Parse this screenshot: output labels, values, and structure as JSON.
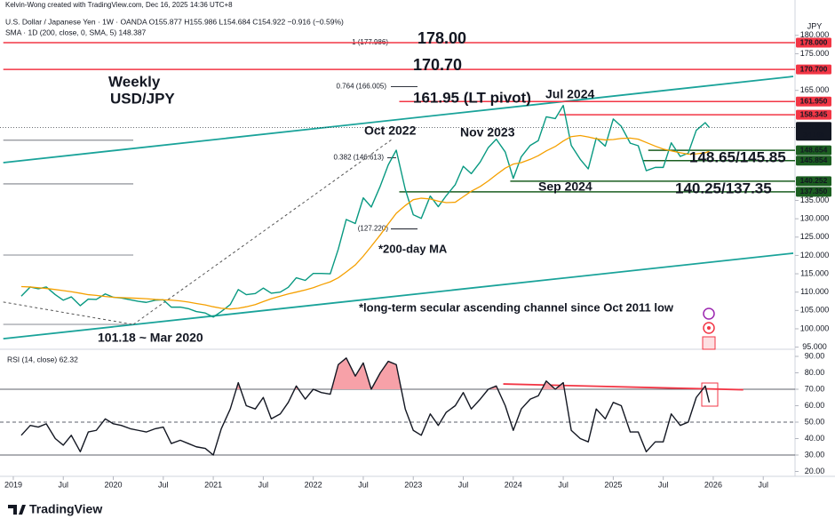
{
  "chart_data": [
    {
      "type": "line",
      "header": [
        "Kelvin-Wong created with TradingView.com, Dec 16, 2025 14:36 UTC+8",
        "U.S. Dollar / Japanese Yen · 1W · OANDA  O155.877 H155.986 L154.684 C154.922 −0.916 (−0.59%)",
        "SMA · 1D (200, close, 0, SMA, 5) 148.387"
      ],
      "y_axis_title": "JPY",
      "xlim": [
        2018.9,
        2026.8
      ],
      "ylim": [
        95,
        180
      ],
      "yticks": [
        {
          "value": 95,
          "label": "95.000"
        },
        {
          "value": 100,
          "label": "100.000"
        },
        {
          "value": 105,
          "label": "105.000"
        },
        {
          "value": 110,
          "label": "110.000"
        },
        {
          "value": 115,
          "label": "115.000"
        },
        {
          "value": 120,
          "label": "120.000"
        },
        {
          "value": 125,
          "label": "125.000"
        },
        {
          "value": 130,
          "label": "130.000"
        },
        {
          "value": 135,
          "label": "135.000"
        },
        {
          "value": 165,
          "label": "165.000"
        },
        {
          "value": 175,
          "label": "175.000"
        },
        {
          "value": 180,
          "label": "180.000"
        }
      ],
      "x": [
        2019.08,
        2019.17,
        2019.25,
        2019.33,
        2019.42,
        2019.5,
        2019.58,
        2019.67,
        2019.75,
        2019.83,
        2019.92,
        2020,
        2020.08,
        2020.17,
        2020.25,
        2020.33,
        2020.42,
        2020.5,
        2020.58,
        2020.67,
        2020.75,
        2020.83,
        2020.92,
        2021,
        2021.08,
        2021.17,
        2021.25,
        2021.33,
        2021.42,
        2021.5,
        2021.58,
        2021.67,
        2021.75,
        2021.83,
        2021.92,
        2022,
        2022.08,
        2022.17,
        2022.25,
        2022.33,
        2022.42,
        2022.5,
        2022.58,
        2022.67,
        2022.75,
        2022.83,
        2022.92,
        2023,
        2023.08,
        2023.17,
        2023.25,
        2023.33,
        2023.42,
        2023.5,
        2023.58,
        2023.67,
        2023.75,
        2023.83,
        2023.92,
        2024,
        2024.08,
        2024.17,
        2024.25,
        2024.33,
        2024.42,
        2024.5,
        2024.58,
        2024.67,
        2024.75,
        2024.83,
        2024.92,
        2025,
        2025.08,
        2025.17,
        2025.25,
        2025.33,
        2025.42,
        2025.5,
        2025.58,
        2025.67,
        2025.75,
        2025.83,
        2025.92,
        2025.96
      ],
      "series": [
        {
          "color": "#089981",
          "values": [
            108.9,
            111.4,
            110.9,
            111.4,
            109.3,
            107.8,
            108.7,
            106.3,
            108.1,
            108.0,
            109.5,
            108.6,
            108.4,
            107.9,
            107.5,
            107.2,
            107.8,
            107.9,
            105.9,
            105.9,
            105.5,
            104.7,
            104.3,
            103.2,
            104.7,
            106.6,
            110.7,
            109.3,
            109.6,
            111.1,
            109.7,
            110.0,
            111.3,
            113.9,
            113.2,
            115.1,
            115.1,
            115.0,
            121.7,
            129.8,
            128.7,
            135.7,
            133.2,
            138.9,
            144.7,
            148.7,
            138.0,
            131.1,
            130.1,
            136.2,
            133.3,
            136.3,
            139.3,
            144.3,
            142.3,
            145.5,
            149.4,
            151.7,
            148.2,
            141.0,
            146.9,
            150.0,
            151.3,
            157.8,
            157.3,
            160.9,
            150.0,
            146.2,
            143.6,
            152.0,
            149.8,
            157.2,
            155.2,
            150.6,
            149.9,
            143.1,
            144.0,
            144.0,
            150.7,
            147.0,
            147.9,
            154.1,
            156.2,
            154.9
          ]
        },
        {
          "color": "#f5a000",
          "values": [
            111.5,
            111.4,
            111.2,
            111.0,
            110.7,
            110.4,
            110.1,
            109.7,
            109.3,
            109.1,
            108.8,
            108.6,
            108.5,
            108.4,
            108.3,
            108.2,
            108.0,
            107.9,
            107.8,
            107.6,
            107.3,
            106.9,
            106.5,
            106.0,
            105.6,
            105.4,
            105.6,
            106.0,
            106.6,
            107.4,
            108.2,
            108.9,
            109.5,
            110.0,
            110.6,
            111.2,
            112.0,
            112.8,
            113.9,
            115.5,
            117.4,
            119.8,
            122.5,
            125.6,
            128.6,
            131.5,
            133.6,
            135.2,
            135.6,
            135.4,
            134.8,
            134.4,
            134.5,
            136.0,
            137.5,
            138.8,
            140.3,
            142.0,
            143.8,
            144.9,
            145.3,
            146.2,
            147.2,
            148.5,
            149.7,
            151.2,
            152.4,
            152.7,
            152.3,
            151.8,
            151.5,
            151.6,
            151.9,
            152.0,
            151.7,
            150.8,
            149.8,
            149.0,
            148.5,
            148.0,
            147.6,
            147.7,
            148.0,
            148.4
          ]
        }
      ],
      "levels": [
        {
          "value": 178,
          "label": "178.000",
          "color": "#f23645",
          "from": 2018.9
        },
        {
          "value": 170.7,
          "label": "170.700",
          "color": "#f23645",
          "from": 2018.9
        },
        {
          "value": 161.95,
          "label": "161.950",
          "color": "#f23645",
          "from": 2022.86
        },
        {
          "value": 158.345,
          "label": "158.345",
          "color": "#f23645",
          "from": 2024.46
        },
        {
          "value": 148.654,
          "label": "148.654",
          "color": "#1b5e20",
          "from": 2025.35
        },
        {
          "value": 145.854,
          "label": "145.854",
          "color": "#1b5e20",
          "from": 2025.3
        },
        {
          "value": 140.252,
          "label": "140.252",
          "color": "#1b5e20",
          "from": 2023.97
        },
        {
          "value": 137.35,
          "label": "137.350",
          "color": "#1b5e20",
          "from": 2022.86
        }
      ],
      "last": {
        "value": 154.922,
        "label": "154.922",
        "countdown": "3d 16h"
      },
      "fib": [
        {
          "value": 177.986,
          "label": "1 (177.986)"
        },
        {
          "value": 166.005,
          "label": "0.764 (166.005)"
        },
        {
          "value": 146.613,
          "label": "0.382 (146.613)"
        },
        {
          "value": 127.22,
          "label": "(127.220)"
        }
      ],
      "ref_lines": [
        151.4,
        139.5,
        120.1,
        101.2
      ],
      "trendlines": [
        {
          "x": [
            2018.9,
            2026.8
          ],
          "y": [
            145.3,
            168.8
          ],
          "color": "#1aa39a",
          "dash": false
        },
        {
          "x": [
            2018.9,
            2026.8
          ],
          "y": [
            97.3,
            120.6
          ],
          "color": "#1aa39a",
          "dash": false
        },
        {
          "x": [
            2020.2,
            2022.8
          ],
          "y": [
            101.18,
            151.9
          ],
          "color": "#555555",
          "dash": true
        },
        {
          "x": [
            2018.9,
            2020.2
          ],
          "y": [
            107.3,
            101.18
          ],
          "color": "#555555",
          "dash": true
        }
      ],
      "annotations": [
        "Weekly",
        "USD/JPY",
        "Oct 2022",
        "Nov 2023",
        "Jul 2024",
        "Sep 2024",
        "148.65/145.85",
        "140.25/137.35",
        "*200-day MA",
        "*long-term secular ascending channel since Oct 2011 low",
        "101.18 ~ Mar 2020",
        "178.00",
        "170.70",
        "161.95 (LT pivot)"
      ]
    },
    {
      "type": "line",
      "title": "RSI (14, close) 62.32",
      "xlim": [
        2018.9,
        2026.8
      ],
      "ylim": [
        17,
        93
      ],
      "yticks": [
        {
          "value": 20,
          "label": "20.00"
        },
        {
          "value": 30,
          "label": "30.00"
        },
        {
          "value": 40,
          "label": "40.00"
        },
        {
          "value": 50,
          "label": "50.00"
        },
        {
          "value": 60,
          "label": "60.00"
        },
        {
          "value": 70,
          "label": "70.00"
        },
        {
          "value": 80,
          "label": "80.00"
        },
        {
          "value": 90,
          "label": "90.00"
        }
      ],
      "xticks": [
        2019,
        {
          "value": 2019.5,
          "label": "Jul"
        },
        2020,
        {
          "value": 2020.5,
          "label": "Jul"
        },
        2021,
        {
          "value": 2021.5,
          "label": "Jul"
        },
        2022,
        {
          "value": 2022.5,
          "label": "Jul"
        },
        2023,
        {
          "value": 2023.5,
          "label": "Jul"
        },
        2024,
        {
          "value": 2024.5,
          "label": "Jul"
        },
        2025,
        {
          "value": 2025.5,
          "label": "Jul"
        },
        2026,
        {
          "value": 2026.5,
          "label": "Jul"
        }
      ],
      "x": [
        2019.08,
        2019.17,
        2019.25,
        2019.33,
        2019.42,
        2019.5,
        2019.58,
        2019.67,
        2019.75,
        2019.83,
        2019.92,
        2020,
        2020.08,
        2020.17,
        2020.25,
        2020.33,
        2020.42,
        2020.5,
        2020.58,
        2020.67,
        2020.75,
        2020.83,
        2020.92,
        2021,
        2021.08,
        2021.17,
        2021.25,
        2021.33,
        2021.42,
        2021.5,
        2021.58,
        2021.67,
        2021.75,
        2021.83,
        2021.92,
        2022,
        2022.08,
        2022.17,
        2022.25,
        2022.33,
        2022.42,
        2022.5,
        2022.58,
        2022.67,
        2022.75,
        2022.83,
        2022.92,
        2023,
        2023.08,
        2023.17,
        2023.25,
        2023.33,
        2023.42,
        2023.5,
        2023.58,
        2023.67,
        2023.75,
        2023.83,
        2023.92,
        2024,
        2024.08,
        2024.17,
        2024.25,
        2024.33,
        2024.42,
        2024.5,
        2024.58,
        2024.67,
        2024.75,
        2024.83,
        2024.92,
        2025,
        2025.08,
        2025.17,
        2025.25,
        2025.33,
        2025.42,
        2025.5,
        2025.58,
        2025.67,
        2025.75,
        2025.83,
        2025.92,
        2025.96
      ],
      "series": [
        {
          "color": "#131722",
          "values": [
            42,
            48,
            47,
            49,
            40,
            36,
            42,
            32,
            44,
            45,
            52,
            49,
            48,
            46,
            45,
            44,
            46,
            47,
            37,
            39,
            37,
            35,
            34,
            30,
            46,
            58,
            74,
            60,
            58,
            65,
            52,
            55,
            62,
            72,
            64,
            70,
            68,
            67,
            85,
            89,
            78,
            86,
            70,
            80,
            87,
            85,
            58,
            45,
            42,
            55,
            48,
            56,
            60,
            68,
            58,
            64,
            70,
            72,
            60,
            45,
            58,
            64,
            66,
            75,
            70,
            74,
            45,
            40,
            38,
            58,
            52,
            62,
            60,
            44,
            44,
            32,
            38,
            38,
            55,
            48,
            50,
            65,
            72,
            62
          ]
        }
      ],
      "hlines": [
        70,
        50,
        30
      ],
      "overbought_color": "#f7a1a8",
      "trendlines": [
        {
          "x": [
            2023.9,
            2026.3
          ],
          "y": [
            73.2,
            69.7
          ],
          "color": "#f23645",
          "dash": false
        }
      ]
    }
  ]
}
